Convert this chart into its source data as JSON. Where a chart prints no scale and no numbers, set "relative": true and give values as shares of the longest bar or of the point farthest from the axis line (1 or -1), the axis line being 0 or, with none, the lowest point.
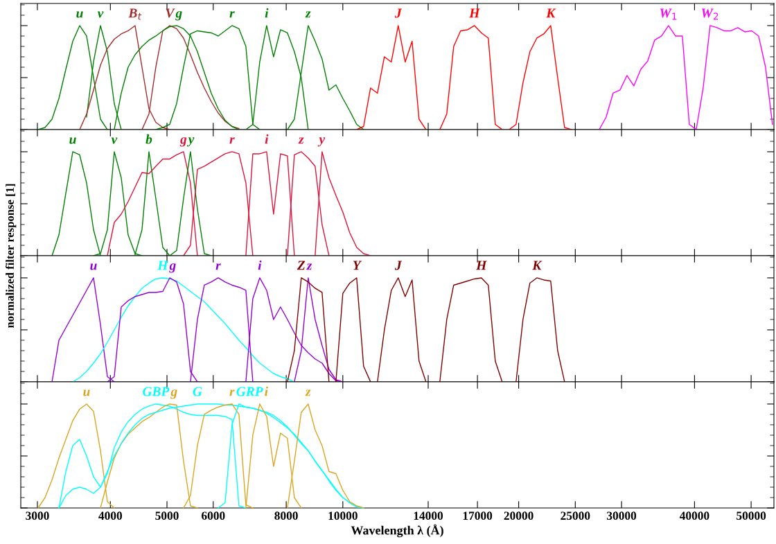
{
  "chart_data": [
    {
      "type": "line",
      "relative": true,
      "log": "x",
      "ylabel": "normalized filter response [1]",
      "tick_labels": false,
      "xlim": [
        2810,
        54700
      ],
      "xticks": [
        3000,
        4000,
        5000,
        6000,
        8000,
        10000,
        14000,
        17000,
        20000,
        25000,
        30000,
        40000,
        50000
      ],
      "series": [
        {
          "name": "u",
          "color": "#008000",
          "x": [
            3009,
            3092,
            3178,
            3266,
            3356,
            3449,
            3544,
            3642,
            3743,
            3847,
            3953
          ],
          "values": [
            0,
            0.02,
            0.1,
            0.3,
            0.58,
            0.85,
            1.0,
            0.9,
            0.5,
            0.1,
            0
          ]
        },
        {
          "name": "v",
          "color": "#008000",
          "x": [
            3642,
            3743,
            3847,
            3953,
            4062,
            4175
          ],
          "values": [
            0.12,
            0.65,
            1.0,
            0.75,
            0.25,
            0
          ]
        },
        {
          "name": "B$_{t}$",
          "color": "#a52a2a",
          "x": [
            3544,
            3642,
            3743,
            3847,
            3953,
            4062,
            4175,
            4290,
            4409,
            4531,
            4657,
            4785,
            4918,
            5054
          ],
          "values": [
            0,
            0.15,
            0.38,
            0.62,
            0.78,
            0.87,
            0.92,
            0.95,
            1.0,
            0.6,
            0.2,
            0.07,
            0.02,
            0
          ]
        },
        {
          "name": "V",
          "color": "#a52a2a",
          "x": [
            4531,
            4657,
            4785,
            4918,
            5054,
            5194,
            5337,
            5485,
            5637,
            5793,
            5953,
            6118,
            6287,
            6461,
            6640
          ],
          "values": [
            0,
            0.15,
            0.6,
            0.95,
            1.0,
            0.97,
            0.88,
            0.72,
            0.55,
            0.4,
            0.27,
            0.16,
            0.08,
            0.03,
            0.01
          ]
        },
        {
          "name": "g",
          "color": "#008000",
          "x": [
            4062,
            4175,
            4290,
            4409,
            4531,
            4657,
            4785,
            4918,
            5054,
            5194,
            5337,
            5485,
            5637,
            5793,
            5953,
            6118,
            6287,
            6461,
            6640
          ],
          "values": [
            0,
            0.35,
            0.6,
            0.72,
            0.8,
            0.86,
            0.9,
            0.95,
            0.99,
            1.0,
            0.97,
            0.9,
            0.75,
            0.55,
            0.35,
            0.2,
            0.09,
            0.03,
            0
          ]
        },
        {
          "name": "r",
          "color": "#008000",
          "x": [
            4785,
            4918,
            5054,
            5194,
            5337,
            5485,
            5637,
            5793,
            5953,
            6118,
            6287,
            6461,
            6640,
            6824,
            7013,
            7207
          ],
          "values": [
            0,
            0.02,
            0.05,
            0.25,
            0.6,
            0.92,
            0.95,
            0.94,
            0.93,
            0.9,
            0.95,
            1.0,
            0.97,
            0.8,
            0.05,
            0
          ]
        },
        {
          "name": "i",
          "color": "#008000",
          "x": [
            6824,
            7013,
            7207,
            7406,
            7611,
            7822,
            8038,
            8261,
            8489,
            8724
          ],
          "values": [
            0,
            0.05,
            0.65,
            1.0,
            0.7,
            0.96,
            0.93,
            0.75,
            0.5,
            0
          ]
        },
        {
          "name": "z",
          "color": "#008000",
          "x": [
            8038,
            8261,
            8489,
            8724,
            8966,
            9214,
            9469,
            9731,
            10000,
            10277,
            10561,
            10853
          ],
          "values": [
            0,
            0.1,
            0.55,
            1.0,
            0.85,
            0.68,
            0.38,
            0.43,
            0.3,
            0.18,
            0.05,
            0
          ]
        },
        {
          "name": "J",
          "color": "#ff0000",
          "x": [
            10561,
            10853,
            11154,
            11462,
            11780,
            12106,
            12441,
            12786,
            13140,
            13504,
            13878
          ],
          "values": [
            0,
            0.03,
            0.4,
            0.35,
            0.7,
            0.65,
            1.0,
            0.65,
            0.85,
            0.1,
            0
          ]
        },
        {
          "name": "H",
          "color": "#ff0000",
          "x": [
            14657,
            15063,
            15480,
            15909,
            16349,
            16802,
            17267,
            17745,
            18237,
            18742
          ],
          "values": [
            0,
            0.15,
            0.8,
            0.95,
            0.96,
            1.0,
            0.93,
            0.88,
            0.05,
            0
          ]
        },
        {
          "name": "K",
          "color": "#ff0000",
          "x": [
            19261,
            19794,
            20342,
            20906,
            21485,
            22080,
            22691,
            23320,
            23965,
            24629
          ],
          "values": [
            0,
            0.05,
            0.45,
            0.75,
            0.88,
            0.92,
            1.0,
            0.5,
            0.02,
            0
          ]
        },
        {
          "name": "W$_{1}$",
          "color": "#ff00ff",
          "x": [
            27473,
            28233,
            29015,
            29819,
            30645,
            31493,
            32365,
            33262,
            34183,
            35130,
            36102,
            37102,
            38130,
            39186,
            40271
          ],
          "values": [
            0,
            0.12,
            0.35,
            0.38,
            0.52,
            0.42,
            0.58,
            0.66,
            0.86,
            0.9,
            1.0,
            0.9,
            0.9,
            0.05,
            0
          ]
        },
        {
          "name": "W$_{2}$",
          "color": "#ff00ff",
          "x": [
            40271,
            41386,
            42532,
            43710,
            44921,
            46165,
            47443,
            48757,
            50107,
            51495,
            52921,
            54386
          ],
          "values": [
            0,
            0.4,
            1.0,
            0.98,
            0.95,
            0.95,
            0.98,
            0.94,
            0.95,
            0.9,
            0.6,
            0.05
          ]
        }
      ]
    },
    {
      "type": "line",
      "relative": true,
      "log": "x",
      "tick_labels": false,
      "xlim": [
        2810,
        54700
      ],
      "xticks": [
        3000,
        4000,
        5000,
        6000,
        8000,
        10000,
        14000,
        17000,
        20000,
        25000,
        30000,
        40000,
        50000
      ],
      "series": [
        {
          "name": "u",
          "color": "#008000",
          "x": [
            3178,
            3266,
            3356,
            3449,
            3544,
            3642,
            3743,
            3847
          ],
          "values": [
            0,
            0.2,
            0.6,
            1.0,
            0.97,
            0.7,
            0.25,
            0
          ]
        },
        {
          "name": "v",
          "color": "#008000",
          "x": [
            3743,
            3847,
            3953,
            4062,
            4175,
            4290,
            4409,
            4531
          ],
          "values": [
            0,
            0.02,
            0.25,
            1.0,
            0.75,
            0.2,
            0.02,
            0
          ]
        },
        {
          "name": "b",
          "color": "#008000",
          "x": [
            4409,
            4531,
            4657,
            4785,
            4918,
            5054
          ],
          "values": [
            0.01,
            0.25,
            1.0,
            0.55,
            0.08,
            0
          ]
        },
        {
          "name": "g",
          "color": "#dc143c",
          "x": [
            3953,
            4062,
            4175,
            4290,
            4409,
            4531,
            4657,
            4785,
            4918,
            5054,
            5194,
            5337,
            5485,
            5637
          ],
          "values": [
            0,
            0.32,
            0.4,
            0.52,
            0.66,
            0.8,
            0.79,
            0.86,
            0.93,
            0.93,
            0.97,
            1.0,
            0.7,
            0
          ]
        },
        {
          "name": "y",
          "color": "#008000",
          "x": [
            5054,
            5194,
            5337,
            5485,
            5637,
            5793,
            5953
          ],
          "values": [
            0,
            0.05,
            0.55,
            1.0,
            0.45,
            0.02,
            0
          ]
        },
        {
          "name": "r",
          "color": "#dc143c",
          "x": [
            5337,
            5485,
            5637,
            5793,
            5953,
            6118,
            6287,
            6461,
            6640,
            6824,
            7013
          ],
          "values": [
            0,
            0.1,
            0.83,
            0.86,
            0.9,
            0.94,
            0.98,
            1.0,
            0.98,
            0.7,
            0
          ]
        },
        {
          "name": "i",
          "color": "#dc143c",
          "x": [
            6824,
            7013,
            7207,
            7406,
            7611,
            7822,
            8038,
            8261
          ],
          "values": [
            0,
            0.98,
            0.98,
            1.0,
            0.4,
            0.98,
            0.96,
            0
          ]
        },
        {
          "name": "z",
          "color": "#dc143c",
          "x": [
            8038,
            8261,
            8489,
            8724,
            8966,
            9214,
            9469
          ],
          "values": [
            0,
            0.97,
            1.0,
            0.94,
            0.86,
            0.3,
            0
          ]
        },
        {
          "name": "y",
          "color": "#dc143c",
          "x": [
            8966,
            9214,
            9469,
            9731,
            10000,
            10277,
            10561,
            10853,
            11154
          ],
          "values": [
            0,
            1.0,
            0.75,
            0.58,
            0.42,
            0.22,
            0.08,
            0.02,
            0
          ]
        }
      ]
    },
    {
      "type": "line",
      "relative": true,
      "log": "x",
      "tick_labels": false,
      "xlim": [
        2810,
        54700
      ],
      "xticks": [
        3000,
        4000,
        5000,
        6000,
        8000,
        10000,
        14000,
        17000,
        20000,
        25000,
        30000,
        40000,
        50000
      ],
      "series": [
        {
          "name": "u",
          "color": "#9400d3",
          "x": [
            3178,
            3266,
            3356,
            3449,
            3544,
            3642,
            3743,
            3847,
            3953,
            4062
          ],
          "values": [
            0,
            0.4,
            0.52,
            0.64,
            0.76,
            0.88,
            1.0,
            0.55,
            0.05,
            0
          ]
        },
        {
          "name": "H",
          "color": "#00ffff",
          "x": [
            3449,
            3544,
            3642,
            3743,
            3847,
            3953,
            4062,
            4175,
            4290,
            4409,
            4531,
            4657,
            4785,
            4918,
            5054,
            5194,
            5337,
            5485,
            5637,
            5793,
            5953,
            6118,
            6287,
            6461,
            6640,
            6824,
            7013,
            7207,
            7406,
            7611,
            7822,
            8038,
            8261
          ],
          "values": [
            0,
            0.04,
            0.1,
            0.18,
            0.27,
            0.38,
            0.5,
            0.62,
            0.73,
            0.82,
            0.9,
            0.95,
            0.99,
            1.0,
            0.99,
            0.97,
            0.92,
            0.87,
            0.82,
            0.77,
            0.7,
            0.63,
            0.56,
            0.48,
            0.4,
            0.33,
            0.25,
            0.18,
            0.13,
            0.08,
            0.05,
            0.03,
            0
          ]
        },
        {
          "name": "g",
          "color": "#9400d3",
          "x": [
            3953,
            4062,
            4175,
            4290,
            4409,
            4531,
            4657,
            4785,
            4918,
            5054,
            5194,
            5337,
            5485,
            5637
          ],
          "values": [
            0,
            0.05,
            0.72,
            0.78,
            0.82,
            0.84,
            0.86,
            0.86,
            0.87,
            1.0,
            0.96,
            0.75,
            0.1,
            0
          ]
        },
        {
          "name": "r",
          "color": "#9400d3",
          "x": [
            5485,
            5637,
            5793,
            5953,
            6118,
            6287,
            6461,
            6640,
            6824,
            7013
          ],
          "values": [
            0,
            0.6,
            0.93,
            0.96,
            1.0,
            0.96,
            0.93,
            0.91,
            0.88,
            0
          ]
        },
        {
          "name": "i",
          "color": "#9400d3",
          "x": [
            6824,
            7013,
            7207,
            7406,
            7611,
            7822,
            8038,
            8261,
            8489,
            8724,
            8966,
            9214,
            9469,
            9731,
            10000
          ],
          "values": [
            0,
            0.8,
            1.0,
            0.88,
            0.6,
            0.72,
            0.6,
            0.47,
            0.35,
            0.28,
            0.22,
            0.18,
            0.08,
            0.01,
            0
          ]
        },
        {
          "name": "z",
          "color": "#9400d3",
          "x": [
            8261,
            8489,
            8724,
            8966,
            9214,
            9469,
            9731,
            10000
          ],
          "values": [
            0,
            0.3,
            1.0,
            0.6,
            0.35,
            0.12,
            0.02,
            0
          ]
        },
        {
          "name": "Z",
          "color": "#800000",
          "x": [
            8038,
            8261,
            8489,
            8724,
            8966,
            9214,
            9469
          ],
          "values": [
            0,
            0.3,
            1.0,
            0.96,
            0.9,
            0.86,
            0
          ]
        },
        {
          "name": "Y",
          "color": "#800000",
          "x": [
            9731,
            10000,
            10277,
            10561,
            10853,
            11154
          ],
          "values": [
            0,
            0.85,
            0.95,
            1.0,
            0.15,
            0
          ]
        },
        {
          "name": "J",
          "color": "#800000",
          "x": [
            11462,
            11780,
            12106,
            12441,
            12786,
            13140,
            13504,
            13878
          ],
          "values": [
            0,
            0.5,
            0.88,
            1.0,
            0.82,
            0.98,
            0.2,
            0
          ]
        },
        {
          "name": "H",
          "color": "#800000",
          "x": [
            14657,
            15063,
            15480,
            15909,
            16349,
            16802,
            17267,
            17745,
            18237,
            18742
          ],
          "values": [
            0,
            0.6,
            0.93,
            0.95,
            0.97,
            0.99,
            1.0,
            0.93,
            0.2,
            0
          ]
        },
        {
          "name": "K",
          "color": "#800000",
          "x": [
            19794,
            20342,
            20906,
            21485,
            22080,
            22691,
            23320,
            23965
          ],
          "values": [
            0,
            0.6,
            0.95,
            1.0,
            0.98,
            0.97,
            0.3,
            0
          ]
        }
      ]
    },
    {
      "type": "line",
      "relative": true,
      "log": "x",
      "tick_labels": "x",
      "xlabel": "Wavelength λ (Å)",
      "xlim": [
        2810,
        54700
      ],
      "xticks": [
        3000,
        4000,
        5000,
        6000,
        8000,
        10000,
        14000,
        17000,
        20000,
        25000,
        30000,
        40000,
        50000
      ],
      "series": [
        {
          "name": "u",
          "color": "#daa520",
          "x": [
            3009,
            3092,
            3178,
            3266,
            3356,
            3449,
            3544,
            3642,
            3743,
            3847,
            3953,
            4062
          ],
          "values": [
            0,
            0.1,
            0.27,
            0.48,
            0.66,
            0.84,
            0.95,
            1.0,
            0.93,
            0.55,
            0.06,
            0
          ]
        },
        {
          "name": "GBP",
          "color": "#00ffff",
          "x": [
            3266,
            3356,
            3449,
            3544,
            3642,
            3743,
            3847,
            3953,
            4062,
            4175,
            4290,
            4409,
            4531,
            4657,
            4785,
            4918,
            5054,
            5194,
            5337,
            5485,
            5637,
            5793,
            5953,
            6118,
            6287,
            6461,
            6640,
            6824
          ],
          "values": [
            0,
            0.35,
            0.6,
            0.66,
            0.5,
            0.3,
            0.2,
            0.33,
            0.58,
            0.73,
            0.83,
            0.9,
            0.95,
            0.98,
            1.0,
            0.99,
            0.98,
            0.95,
            0.92,
            0.9,
            0.89,
            0.89,
            0.89,
            0.89,
            0.88,
            0.85,
            0.02,
            0
          ]
        },
        {
          "name": "g",
          "color": "#daa520",
          "x": [
            3847,
            3953,
            4062,
            4175,
            4290,
            4409,
            4531,
            4657,
            4785,
            4918,
            5054,
            5194,
            5337,
            5485,
            5637
          ],
          "values": [
            0,
            0.25,
            0.48,
            0.62,
            0.71,
            0.77,
            0.83,
            0.87,
            0.92,
            0.97,
            1.0,
            0.99,
            0.45,
            0.02,
            0
          ]
        },
        {
          "name": "G",
          "color": "#00ffff",
          "x": [
            3266,
            3356,
            3449,
            3544,
            3642,
            3743,
            3847,
            3953,
            4062,
            4175,
            4290,
            4409,
            4531,
            4657,
            4785,
            4918,
            5054,
            5194,
            5337,
            5485,
            5637,
            5793,
            5953,
            6118,
            6287,
            6461,
            6640,
            6824,
            7013,
            7207,
            7406,
            7611,
            7822,
            8038,
            8261,
            8489,
            8724,
            8966,
            9214,
            9469,
            9731,
            10000,
            10277,
            10561,
            10853
          ],
          "values": [
            0,
            0.12,
            0.18,
            0.2,
            0.18,
            0.14,
            0.2,
            0.35,
            0.5,
            0.62,
            0.72,
            0.8,
            0.86,
            0.9,
            0.92,
            0.94,
            0.96,
            0.97,
            0.98,
            0.99,
            1.0,
            1.0,
            1.0,
            1.0,
            0.99,
            0.99,
            0.98,
            0.97,
            0.96,
            0.94,
            0.91,
            0.87,
            0.82,
            0.77,
            0.71,
            0.63,
            0.55,
            0.45,
            0.36,
            0.26,
            0.17,
            0.1,
            0.05,
            0.01,
            0
          ]
        },
        {
          "name": "r",
          "color": "#daa520",
          "x": [
            5337,
            5485,
            5637,
            5793,
            5953,
            6118,
            6287,
            6461,
            6640,
            6824,
            7013
          ],
          "values": [
            0,
            0.12,
            0.6,
            0.9,
            0.94,
            0.97,
            0.99,
            1.0,
            0.9,
            0.03,
            0
          ]
        },
        {
          "name": "GRP",
          "color": "#00ffff",
          "x": [
            6118,
            6287,
            6461,
            6640,
            6824,
            7013,
            7207,
            7406,
            7611,
            7822,
            8038,
            8261,
            8489,
            8724,
            8966,
            9214,
            9469,
            9731,
            10000,
            10277,
            10561,
            10853
          ],
          "values": [
            0,
            0.05,
            0.8,
            1.0,
            0.97,
            0.96,
            0.94,
            0.92,
            0.89,
            0.84,
            0.78,
            0.7,
            0.62,
            0.55,
            0.45,
            0.36,
            0.27,
            0.18,
            0.1,
            0.05,
            0.01,
            0
          ]
        },
        {
          "name": "i",
          "color": "#daa520",
          "x": [
            6824,
            7013,
            7207,
            7406,
            7611,
            7822,
            8038,
            8261,
            8489
          ],
          "values": [
            0,
            0.7,
            1.0,
            0.88,
            0.4,
            0.72,
            0.67,
            0.1,
            0
          ]
        },
        {
          "name": "z",
          "color": "#daa520",
          "x": [
            8038,
            8261,
            8489,
            8724,
            8966,
            9214,
            9469,
            9731,
            10000,
            10277,
            10561,
            10853
          ],
          "values": [
            0,
            0.45,
            0.92,
            1.0,
            0.75,
            0.6,
            0.35,
            0.33,
            0.17,
            0.06,
            0.02,
            0
          ]
        }
      ]
    }
  ]
}
